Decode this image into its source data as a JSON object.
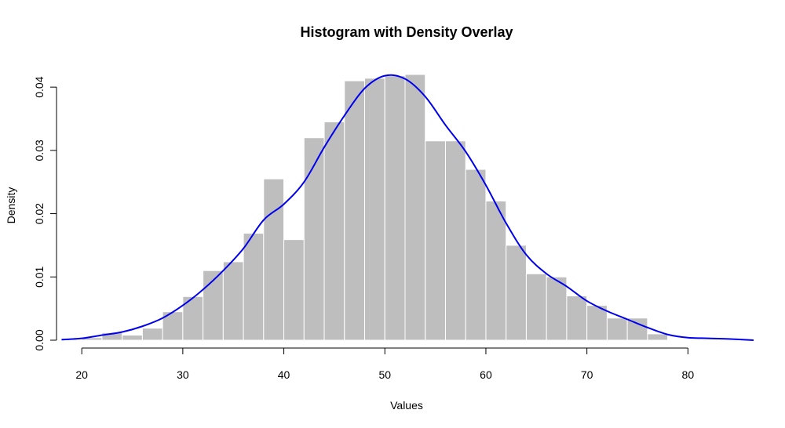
{
  "colors": {
    "bar_fill": "#bebebe",
    "bar_stroke": "#ffffff",
    "density_line": "#0000ee",
    "axis": "#000000"
  },
  "chart_data": {
    "type": "bar",
    "subtype": "histogram-with-density",
    "title": "Histogram with Density Overlay",
    "xlabel": "Values",
    "ylabel": "Density",
    "xlim": [
      17.5,
      86.5
    ],
    "ylim": [
      0,
      0.042
    ],
    "x_ticks": [
      20,
      30,
      40,
      50,
      60,
      70,
      80
    ],
    "x_tick_labels": [
      "20",
      "30",
      "40",
      "50",
      "60",
      "70",
      "80"
    ],
    "y_ticks": [
      0,
      0.01,
      0.02,
      0.03,
      0.04
    ],
    "y_tick_labels": [
      "0.00",
      "0.01",
      "0.02",
      "0.03",
      "0.04"
    ],
    "grid": false,
    "bin_width": 2,
    "bins": [
      {
        "x0": 20,
        "x1": 22,
        "value": 0.0004
      },
      {
        "x0": 22,
        "x1": 24,
        "value": 0.0012
      },
      {
        "x0": 24,
        "x1": 26,
        "value": 0.0008
      },
      {
        "x0": 26,
        "x1": 28,
        "value": 0.0019
      },
      {
        "x0": 28,
        "x1": 30,
        "value": 0.0045
      },
      {
        "x0": 30,
        "x1": 32,
        "value": 0.0069
      },
      {
        "x0": 32,
        "x1": 34,
        "value": 0.011
      },
      {
        "x0": 34,
        "x1": 36,
        "value": 0.0124
      },
      {
        "x0": 36,
        "x1": 38,
        "value": 0.0169
      },
      {
        "x0": 38,
        "x1": 40,
        "value": 0.0255
      },
      {
        "x0": 40,
        "x1": 42,
        "value": 0.0159
      },
      {
        "x0": 42,
        "x1": 44,
        "value": 0.032
      },
      {
        "x0": 44,
        "x1": 46,
        "value": 0.0345
      },
      {
        "x0": 46,
        "x1": 48,
        "value": 0.041
      },
      {
        "x0": 48,
        "x1": 50,
        "value": 0.0414
      },
      {
        "x0": 50,
        "x1": 52,
        "value": 0.0418
      },
      {
        "x0": 52,
        "x1": 54,
        "value": 0.042
      },
      {
        "x0": 54,
        "x1": 56,
        "value": 0.0315
      },
      {
        "x0": 56,
        "x1": 58,
        "value": 0.0315
      },
      {
        "x0": 58,
        "x1": 60,
        "value": 0.027
      },
      {
        "x0": 60,
        "x1": 62,
        "value": 0.022
      },
      {
        "x0": 62,
        "x1": 64,
        "value": 0.015
      },
      {
        "x0": 64,
        "x1": 66,
        "value": 0.0105
      },
      {
        "x0": 66,
        "x1": 68,
        "value": 0.01
      },
      {
        "x0": 68,
        "x1": 70,
        "value": 0.007
      },
      {
        "x0": 70,
        "x1": 72,
        "value": 0.0055
      },
      {
        "x0": 72,
        "x1": 74,
        "value": 0.0035
      },
      {
        "x0": 74,
        "x1": 76,
        "value": 0.0035
      },
      {
        "x0": 76,
        "x1": 78,
        "value": 0.001
      }
    ],
    "density_curve": [
      [
        18,
        0.0001
      ],
      [
        20,
        0.0003
      ],
      [
        22,
        0.0008
      ],
      [
        24,
        0.0013
      ],
      [
        26,
        0.0022
      ],
      [
        28,
        0.0035
      ],
      [
        30,
        0.0055
      ],
      [
        32,
        0.008
      ],
      [
        34,
        0.011
      ],
      [
        36,
        0.0145
      ],
      [
        38,
        0.019
      ],
      [
        40,
        0.0215
      ],
      [
        42,
        0.025
      ],
      [
        44,
        0.0305
      ],
      [
        46,
        0.0355
      ],
      [
        48,
        0.0398
      ],
      [
        50,
        0.0418
      ],
      [
        52,
        0.0413
      ],
      [
        54,
        0.0385
      ],
      [
        56,
        0.034
      ],
      [
        58,
        0.0298
      ],
      [
        60,
        0.0245
      ],
      [
        62,
        0.0185
      ],
      [
        64,
        0.0135
      ],
      [
        66,
        0.0105
      ],
      [
        68,
        0.0085
      ],
      [
        70,
        0.0062
      ],
      [
        72,
        0.0046
      ],
      [
        74,
        0.0033
      ],
      [
        76,
        0.002
      ],
      [
        78,
        0.0009
      ],
      [
        80,
        0.0004
      ],
      [
        82,
        0.0003
      ],
      [
        84,
        0.0002
      ],
      [
        86.5,
        0.0
      ]
    ]
  }
}
